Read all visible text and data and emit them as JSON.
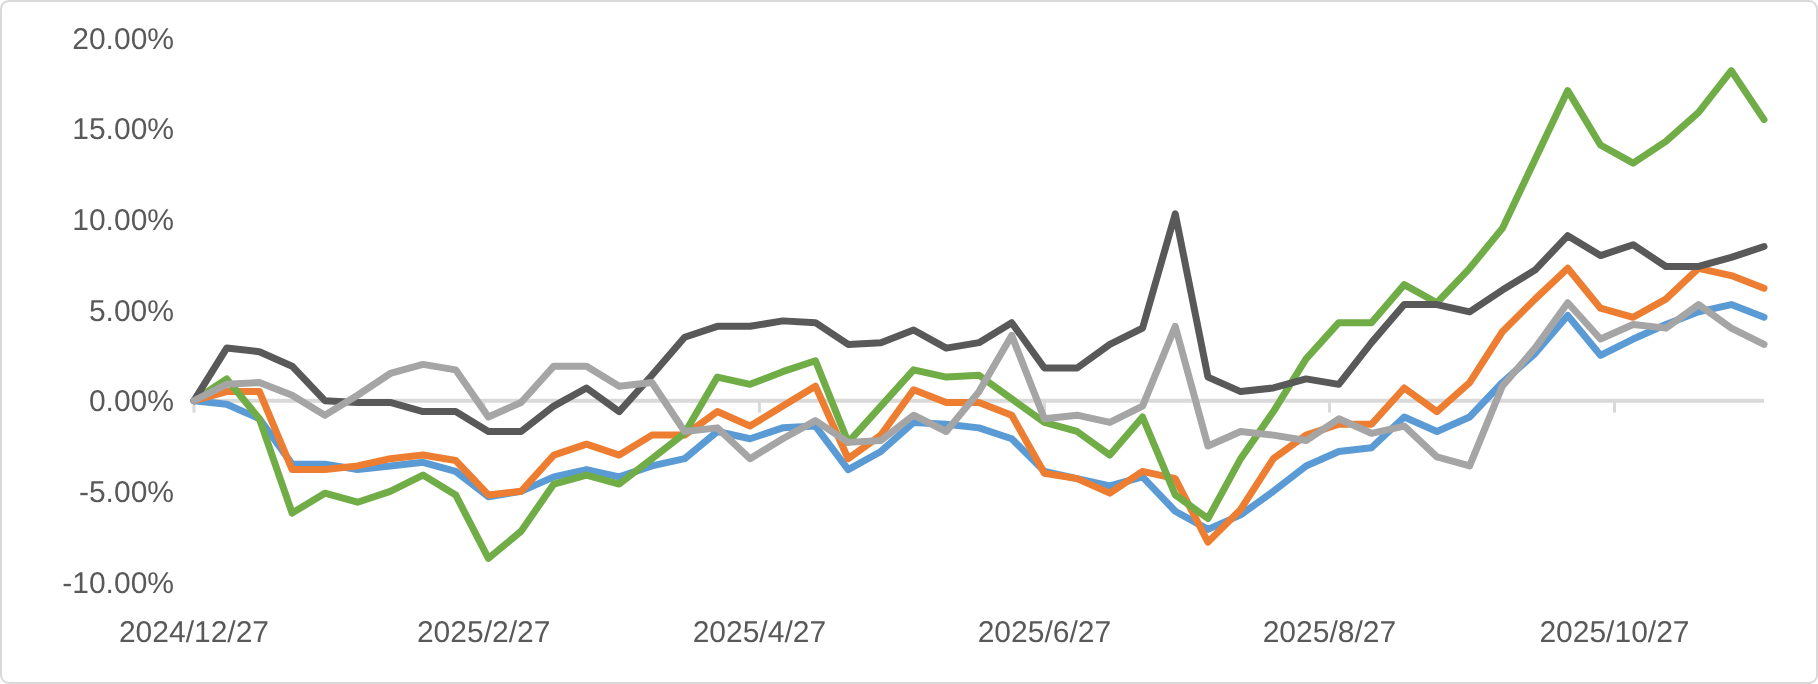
{
  "chart_data": {
    "type": "line",
    "x": [
      "2024-12-27",
      "2025-01-03",
      "2025-01-10",
      "2025-01-17",
      "2025-01-24",
      "2025-01-31",
      "2025-02-07",
      "2025-02-14",
      "2025-02-21",
      "2025-02-28",
      "2025-03-07",
      "2025-03-14",
      "2025-03-21",
      "2025-03-28",
      "2025-04-04",
      "2025-04-11",
      "2025-04-18",
      "2025-04-25",
      "2025-05-02",
      "2025-05-09",
      "2025-05-16",
      "2025-05-23",
      "2025-05-30",
      "2025-06-06",
      "2025-06-13",
      "2025-06-20",
      "2025-06-27",
      "2025-07-04",
      "2025-07-11",
      "2025-07-18",
      "2025-07-25",
      "2025-08-01",
      "2025-08-08",
      "2025-08-15",
      "2025-08-22",
      "2025-08-29",
      "2025-09-05",
      "2025-09-12",
      "2025-09-19",
      "2025-09-26",
      "2025-10-03",
      "2025-10-10",
      "2025-10-17",
      "2025-10-24",
      "2025-10-31",
      "2025-11-07",
      "2025-11-14",
      "2025-11-21",
      "2025-11-28"
    ],
    "series": [
      {
        "color": "#5b9bd5",
        "values": [
          0,
          -0.2,
          -1.0,
          -3.5,
          -3.5,
          -3.8,
          -3.6,
          -3.4,
          -3.9,
          -5.3,
          -5.0,
          -4.2,
          -3.8,
          -4.2,
          -3.6,
          -3.2,
          -1.7,
          -2.1,
          -1.5,
          -1.4,
          -3.8,
          -2.8,
          -1.2,
          -1.3,
          -1.5,
          -2.1,
          -3.9,
          -4.3,
          -4.7,
          -4.2,
          -6.1,
          -7.1,
          -6.3,
          -5.0,
          -3.6,
          -2.8,
          -2.6,
          -0.9,
          -1.7,
          -0.9,
          1.0,
          2.6,
          4.7,
          2.5,
          3.4,
          4.2,
          4.9,
          5.3,
          4.6
        ]
      },
      {
        "color": "#ed7d31",
        "values": [
          0,
          0.5,
          0.5,
          -3.8,
          -3.8,
          -3.6,
          -3.2,
          -3.0,
          -3.3,
          -5.2,
          -5.0,
          -3.0,
          -2.4,
          -3.0,
          -1.9,
          -1.9,
          -0.6,
          -1.4,
          -0.3,
          0.8,
          -3.2,
          -1.9,
          0.6,
          -0.1,
          -0.1,
          -0.8,
          -4.0,
          -4.3,
          -5.1,
          -3.9,
          -4.3,
          -7.8,
          -6.0,
          -3.2,
          -1.9,
          -1.3,
          -1.3,
          0.7,
          -0.6,
          1.0,
          3.8,
          5.6,
          7.3,
          5.1,
          4.6,
          5.6,
          7.3,
          6.9,
          6.2
        ]
      },
      {
        "color": "#70ad47",
        "values": [
          0,
          1.2,
          -1.0,
          -6.2,
          -5.1,
          -5.6,
          -5.0,
          -4.1,
          -5.2,
          -8.7,
          -7.2,
          -4.6,
          -4.1,
          -4.6,
          -3.2,
          -1.8,
          1.3,
          0.9,
          1.6,
          2.2,
          -2.3,
          -0.3,
          1.7,
          1.3,
          1.4,
          0.1,
          -1.2,
          -1.7,
          -3.0,
          -0.9,
          -5.2,
          -6.5,
          -3.2,
          -0.6,
          2.3,
          4.3,
          4.3,
          6.4,
          5.4,
          7.3,
          9.5,
          13.3,
          17.1,
          14.1,
          13.1,
          14.3,
          15.9,
          18.2,
          15.5
        ]
      },
      {
        "color": "#595959",
        "values": [
          0,
          2.9,
          2.7,
          1.9,
          0,
          -0.1,
          -0.1,
          -0.6,
          -0.6,
          -1.7,
          -1.7,
          -0.3,
          0.7,
          -0.6,
          1.4,
          3.5,
          4.1,
          4.1,
          4.4,
          4.3,
          3.1,
          3.2,
          3.9,
          2.9,
          3.2,
          4.3,
          1.8,
          1.8,
          3.1,
          4.0,
          10.3,
          1.3,
          0.5,
          0.7,
          1.2,
          0.9,
          3.2,
          5.3,
          5.3,
          4.9,
          6.1,
          7.2,
          9.1,
          8.0,
          8.6,
          7.4,
          7.4,
          7.9,
          8.5
        ]
      },
      {
        "color": "#a5a5a5",
        "values": [
          0,
          0.9,
          1.0,
          0.3,
          -0.8,
          0.3,
          1.5,
          2.0,
          1.7,
          -0.9,
          -0.1,
          1.9,
          1.9,
          0.8,
          1.0,
          -1.7,
          -1.5,
          -3.2,
          -2.1,
          -1.1,
          -2.3,
          -2.2,
          -0.8,
          -1.7,
          0.5,
          3.6,
          -1.0,
          -0.8,
          -1.2,
          -0.3,
          4.1,
          -2.5,
          -1.7,
          -1.9,
          -2.2,
          -1.0,
          -1.8,
          -1.4,
          -3.1,
          -3.6,
          0.8,
          2.9,
          5.4,
          3.4,
          4.2,
          4.0,
          5.3,
          4.0,
          3.1
        ]
      }
    ],
    "xlim": [
      "2024-12-27",
      "2025-11-28"
    ],
    "xticks": [
      {
        "value": "2024-12-27",
        "label": "2024/12/27"
      },
      {
        "value": "2025-02-27",
        "label": "2025/2/27"
      },
      {
        "value": "2025-04-27",
        "label": "2025/4/27"
      },
      {
        "value": "2025-06-27",
        "label": "2025/6/27"
      },
      {
        "value": "2025-08-27",
        "label": "2025/8/27"
      },
      {
        "value": "2025-10-27",
        "label": "2025/10/27"
      }
    ],
    "ylim": [
      -10,
      20
    ],
    "yticks": [
      {
        "value": -10,
        "label": "-10.00%"
      },
      {
        "value": -5,
        "label": "-5.00%"
      },
      {
        "value": 0,
        "label": "0.00%"
      },
      {
        "value": 5,
        "label": "5.00%"
      },
      {
        "value": 10,
        "label": "10.00%"
      },
      {
        "value": 15,
        "label": "15.00%"
      },
      {
        "value": 20,
        "label": "20.00%"
      }
    ],
    "marker": "none",
    "line_style": "solid"
  }
}
